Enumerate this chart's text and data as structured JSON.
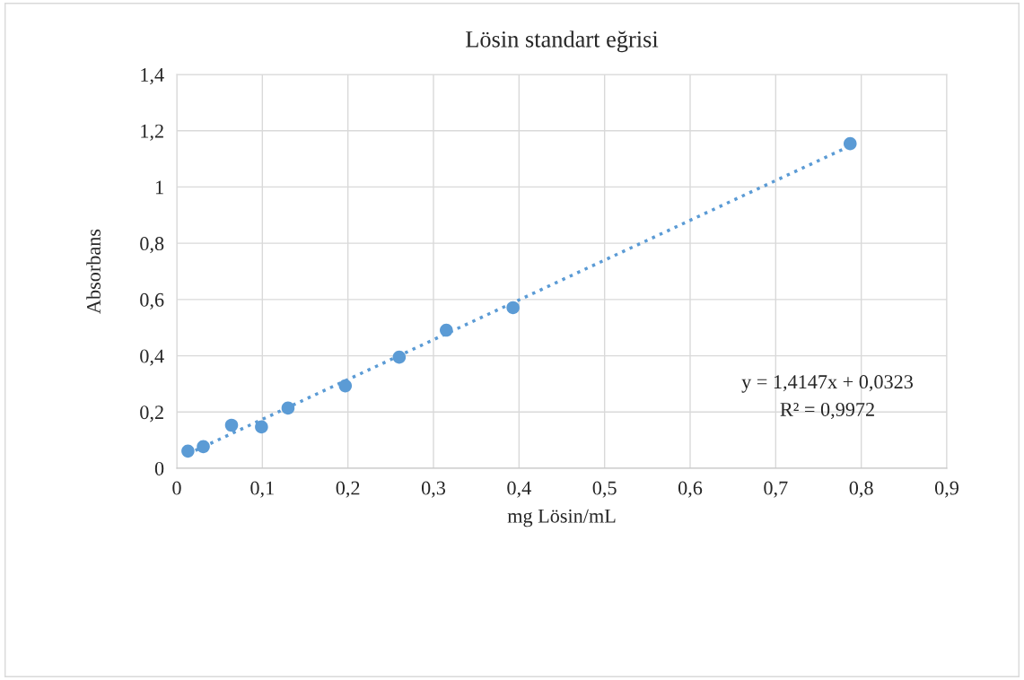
{
  "chart_data": {
    "type": "scatter",
    "title": "Lösin standart eğrisi",
    "xlabel": "mg Lösin/mL",
    "ylabel": "Absorbans",
    "series": [
      {
        "color": "#5b9bd5",
        "marker": "circle",
        "x": [
          0.013,
          0.031,
          0.064,
          0.099,
          0.13,
          0.197,
          0.26,
          0.315,
          0.393,
          0.787
        ],
        "values": [
          0.061,
          0.077,
          0.153,
          0.147,
          0.214,
          0.293,
          0.395,
          0.491,
          0.571,
          1.154
        ]
      },
      {
        "type": "line",
        "color": "#5b9bd5",
        "line_style": "dotted",
        "marker": "none",
        "x": [
          0.013,
          0.787
        ],
        "values": [
          0.051,
          1.146
        ]
      }
    ],
    "xlim": [
      0,
      0.9
    ],
    "ylim": [
      0,
      1.4
    ],
    "xticks": [
      0,
      {
        "value": 0.1,
        "label": "0,1"
      },
      {
        "value": 0.2,
        "label": "0,2"
      },
      {
        "value": 0.3,
        "label": "0,3"
      },
      {
        "value": 0.4,
        "label": "0,4"
      },
      {
        "value": 0.5,
        "label": "0,5"
      },
      {
        "value": 0.6,
        "label": "0,6"
      },
      {
        "value": 0.7,
        "label": "0,7"
      },
      {
        "value": 0.8,
        "label": "0,8"
      },
      {
        "value": 0.9,
        "label": "0,9"
      }
    ],
    "yticks": [
      0,
      {
        "value": 0.2,
        "label": "0,2"
      },
      {
        "value": 0.4,
        "label": "0,4"
      },
      {
        "value": 0.6,
        "label": "0,6"
      },
      {
        "value": 0.8,
        "label": "0,8"
      },
      1,
      {
        "value": 1.2,
        "label": "1,2"
      },
      {
        "value": 1.4,
        "label": "1,4"
      }
    ],
    "grid": true,
    "legend": false,
    "annotations": [
      "y = 1,4147x + 0,0323",
      "R² = 0,9972"
    ]
  }
}
